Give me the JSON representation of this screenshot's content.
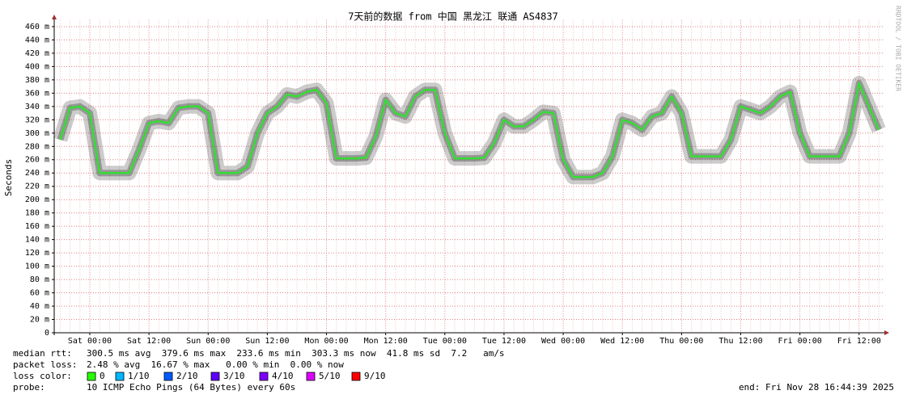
{
  "chart_data": {
    "type": "line",
    "title": "7天前的数据 from 中国 黑龙江 联通 AS4837",
    "y_label": "Seconds",
    "watermark": "RRDTOOL / TOBI OETIKER",
    "categories": [
      null,
      null,
      null,
      "Sat 00:00",
      null,
      null,
      null,
      null,
      null,
      "Sat 12:00",
      null,
      null,
      null,
      null,
      null,
      "Sun 00:00",
      null,
      null,
      null,
      null,
      null,
      "Sun 12:00",
      null,
      null,
      null,
      null,
      null,
      "Mon 00:00",
      null,
      null,
      null,
      null,
      null,
      "Mon 12:00",
      null,
      null,
      null,
      null,
      null,
      "Tue 00:00",
      null,
      null,
      null,
      null,
      null,
      "Tue 12:00",
      null,
      null,
      null,
      null,
      null,
      "Wed 00:00",
      null,
      null,
      null,
      null,
      null,
      "Wed 12:00",
      null,
      null,
      null,
      null,
      null,
      "Thu 00:00",
      null,
      null,
      null,
      null,
      null,
      "Thu 12:00",
      null,
      null,
      null,
      null,
      null,
      "Fri 00:00",
      null,
      null,
      null,
      null,
      null,
      "Fri 12:00",
      null,
      null
    ],
    "values": [
      0.29,
      0.338,
      0.34,
      0.33,
      0.24,
      0.24,
      0.24,
      0.24,
      0.275,
      0.315,
      0.318,
      0.315,
      0.338,
      0.34,
      0.34,
      0.33,
      0.24,
      0.24,
      0.24,
      0.25,
      0.3,
      0.33,
      0.34,
      0.358,
      0.355,
      0.362,
      0.365,
      0.345,
      0.262,
      0.262,
      0.262,
      0.263,
      0.295,
      0.35,
      0.33,
      0.325,
      0.355,
      0.365,
      0.365,
      0.3,
      0.262,
      0.262,
      0.262,
      0.263,
      0.285,
      0.32,
      0.31,
      0.31,
      0.32,
      0.332,
      0.33,
      0.26,
      0.234,
      0.234,
      0.234,
      0.24,
      0.265,
      0.32,
      0.315,
      0.305,
      0.325,
      0.33,
      0.355,
      0.33,
      0.265,
      0.265,
      0.265,
      0.265,
      0.29,
      0.34,
      0.335,
      0.33,
      0.34,
      0.355,
      0.362,
      0.3,
      0.265,
      0.265,
      0.265,
      0.265,
      0.3,
      0.375,
      0.34,
      0.305
    ],
    "color": "#33dd33",
    "ylim": [
      0,
      0.47
    ],
    "yticks": [
      0,
      {
        "value": 0.02,
        "label": "20 m"
      },
      {
        "value": 0.04,
        "label": "40 m"
      },
      {
        "value": 0.06,
        "label": "60 m"
      },
      {
        "value": 0.08,
        "label": "80 m"
      },
      {
        "value": 0.1,
        "label": "100 m"
      },
      {
        "value": 0.12,
        "label": "120 m"
      },
      {
        "value": 0.14,
        "label": "140 m"
      },
      {
        "value": 0.16,
        "label": "160 m"
      },
      {
        "value": 0.18,
        "label": "180 m"
      },
      {
        "value": 0.2,
        "label": "200 m"
      },
      {
        "value": 0.22,
        "label": "220 m"
      },
      {
        "value": 0.24,
        "label": "240 m"
      },
      {
        "value": 0.26,
        "label": "260 m"
      },
      {
        "value": 0.28,
        "label": "280 m"
      },
      {
        "value": 0.3,
        "label": "300 m"
      },
      {
        "value": 0.32,
        "label": "320 m"
      },
      {
        "value": 0.34,
        "label": "340 m"
      },
      {
        "value": 0.36,
        "label": "360 m"
      },
      {
        "value": 0.38,
        "label": "380 m"
      },
      {
        "value": 0.4,
        "label": "400 m"
      },
      {
        "value": 0.42,
        "label": "420 m"
      },
      {
        "value": 0.44,
        "label": "440 m"
      },
      {
        "value": 0.46,
        "label": "460 m"
      }
    ],
    "grid": true,
    "stats": [
      {
        "label": "median rtt:",
        "text": "300.5 ms avg  379.6 ms max  233.6 ms min  303.3 ms now  41.8 ms sd  7.2   am/s"
      },
      {
        "label": "packet loss:",
        "text": "2.48 % avg  16.67 % max   0.00 % min  0.00 % now"
      }
    ],
    "loss_legend": {
      "label": "loss color:",
      "items": [
        {
          "label": "0",
          "color": "#26ff00"
        },
        {
          "label": "1/10",
          "color": "#00b8ff"
        },
        {
          "label": "2/10",
          "color": "#0059ff"
        },
        {
          "label": "3/10",
          "color": "#5e00ff"
        },
        {
          "label": "4/10",
          "color": "#7e00ff"
        },
        {
          "label": "5/10",
          "color": "#dd00ff"
        },
        {
          "label": "9/10",
          "color": "#ff0000"
        }
      ]
    },
    "probe": {
      "label": "probe:",
      "text": "10 ICMP Echo Pings (64 Bytes) every 60s"
    },
    "end": "end: Fri Nov 28 16:44:39 2025"
  }
}
